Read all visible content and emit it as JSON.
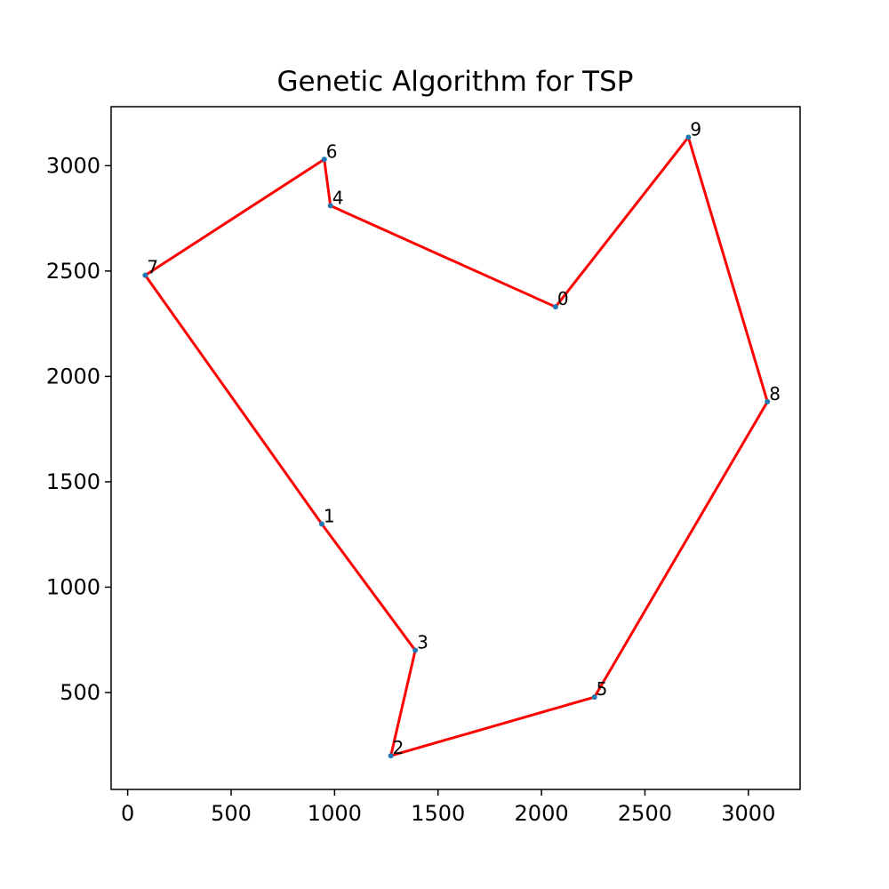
{
  "chart_data": {
    "type": "line",
    "title": "Genetic Algorithm for TSP",
    "xlabel": "",
    "ylabel": "",
    "xlim": [
      -80,
      3250
    ],
    "ylim": [
      40,
      3280
    ],
    "xticks": [
      0,
      500,
      1000,
      1500,
      2000,
      2500,
      3000
    ],
    "yticks": [
      500,
      1000,
      1500,
      2000,
      2500,
      3000
    ],
    "grid": false,
    "points": [
      {
        "label": "0",
        "x": 2068,
        "y": 2330
      },
      {
        "label": "1",
        "x": 938,
        "y": 1300
      },
      {
        "label": "2",
        "x": 1272,
        "y": 200
      },
      {
        "label": "3",
        "x": 1390,
        "y": 700
      },
      {
        "label": "4",
        "x": 980,
        "y": 2810
      },
      {
        "label": "5",
        "x": 2256,
        "y": 478
      },
      {
        "label": "6",
        "x": 950,
        "y": 3030
      },
      {
        "label": "7",
        "x": 85,
        "y": 2480
      },
      {
        "label": "8",
        "x": 3092,
        "y": 1880
      },
      {
        "label": "9",
        "x": 2710,
        "y": 3135
      }
    ],
    "route": [
      7,
      6,
      4,
      0,
      9,
      8,
      5,
      2,
      3,
      1,
      7
    ],
    "line_color": "#ff0000",
    "marker_color": "#1f77b4"
  }
}
